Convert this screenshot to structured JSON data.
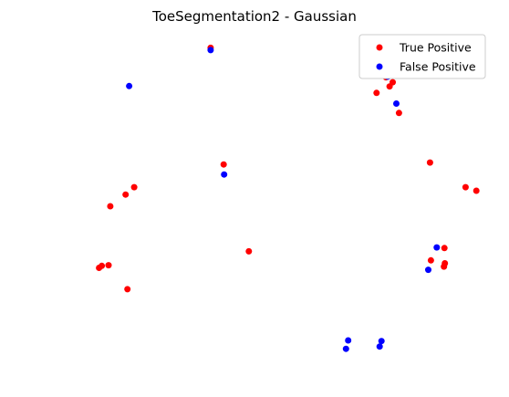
{
  "chart_data": {
    "type": "scatter",
    "title": "ToeSegmentation2 - Gaussian",
    "xlabel": "",
    "ylabel": "",
    "axes_visible": false,
    "grid": false,
    "legend_position": "top-right",
    "xlim": [
      0,
      1
    ],
    "ylim": [
      0,
      1
    ],
    "series": [
      {
        "name": "True Positive",
        "color": "#ff0000",
        "points": [
          [
            0.377,
            0.965
          ],
          [
            0.767,
            0.874
          ],
          [
            0.782,
            0.859
          ],
          [
            0.775,
            0.846
          ],
          [
            0.746,
            0.826
          ],
          [
            0.796,
            0.764
          ],
          [
            0.406,
            0.605
          ],
          [
            0.865,
            0.611
          ],
          [
            0.944,
            0.535
          ],
          [
            0.968,
            0.524
          ],
          [
            0.207,
            0.535
          ],
          [
            0.188,
            0.512
          ],
          [
            0.154,
            0.476
          ],
          [
            0.462,
            0.337
          ],
          [
            0.897,
            0.347
          ],
          [
            0.867,
            0.309
          ],
          [
            0.898,
            0.3
          ],
          [
            0.896,
            0.29
          ],
          [
            0.135,
            0.292
          ],
          [
            0.15,
            0.294
          ],
          [
            0.129,
            0.286
          ],
          [
            0.192,
            0.22
          ]
        ]
      },
      {
        "name": "False Positive",
        "color": "#0000ff",
        "points": [
          [
            0.377,
            0.958
          ],
          [
            0.196,
            0.847
          ],
          [
            0.771,
            0.876
          ],
          [
            0.79,
            0.793
          ],
          [
            0.407,
            0.574
          ],
          [
            0.88,
            0.349
          ],
          [
            0.861,
            0.28
          ],
          [
            0.683,
            0.062
          ],
          [
            0.678,
            0.036
          ],
          [
            0.757,
            0.06
          ],
          [
            0.753,
            0.043
          ]
        ]
      }
    ]
  }
}
